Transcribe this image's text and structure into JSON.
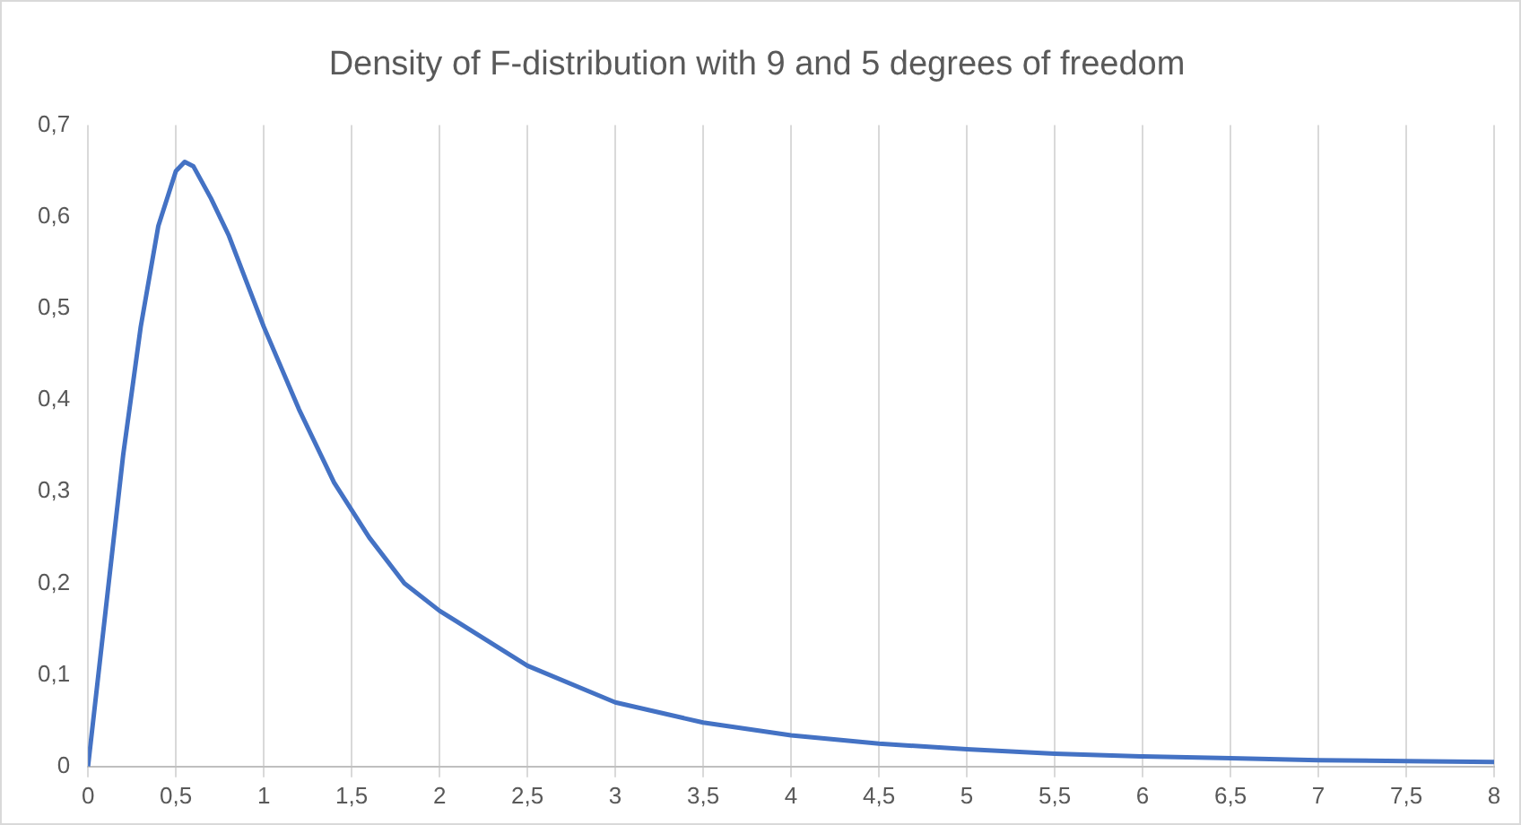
{
  "chart_data": {
    "type": "line",
    "title": "Density of F-distribution with 9 and 5 degrees of freedom",
    "x": [
      0,
      0.1,
      0.2,
      0.3,
      0.4,
      0.5,
      0.55,
      0.6,
      0.7,
      0.8,
      0.9,
      1,
      1.2,
      1.4,
      1.6,
      1.8,
      2,
      2.5,
      3,
      3.5,
      4,
      4.5,
      5,
      5.5,
      6,
      6.5,
      7,
      7.5,
      8
    ],
    "series": [
      {
        "color": "#4472c4",
        "values": [
          0,
          0.17,
          0.34,
          0.48,
          0.59,
          0.65,
          0.66,
          0.655,
          0.62,
          0.58,
          0.53,
          0.48,
          0.39,
          0.31,
          0.25,
          0.2,
          0.17,
          0.11,
          0.07,
          0.048,
          0.034,
          0.025,
          0.019,
          0.014,
          0.011,
          0.009,
          0.007,
          0.006,
          0.005
        ]
      }
    ],
    "xlim": [
      0,
      8
    ],
    "xticks": [
      0,
      {
        "value": 0.5,
        "label": "0,5"
      },
      1,
      {
        "value": 1.5,
        "label": "1,5"
      },
      2,
      {
        "value": 2.5,
        "label": "2,5"
      },
      3,
      {
        "value": 3.5,
        "label": "3,5"
      },
      4,
      {
        "value": 4.5,
        "label": "4,5"
      },
      5,
      {
        "value": 5.5,
        "label": "5,5"
      },
      6,
      {
        "value": 6.5,
        "label": "6,5"
      },
      7,
      {
        "value": 7.5,
        "label": "7,5"
      },
      8
    ],
    "ylim": [
      0,
      0.7
    ],
    "yticks": [
      0,
      {
        "value": 0.1,
        "label": "0,1"
      },
      {
        "value": 0.2,
        "label": "0,2"
      },
      {
        "value": 0.3,
        "label": "0,3"
      },
      {
        "value": 0.4,
        "label": "0,4"
      },
      {
        "value": 0.5,
        "label": "0,5"
      },
      {
        "value": 0.6,
        "label": "0,6"
      },
      {
        "value": 0.7,
        "label": "0,7"
      }
    ],
    "grid": "x",
    "marker": "none",
    "line_style": "solid",
    "legend": false
  }
}
